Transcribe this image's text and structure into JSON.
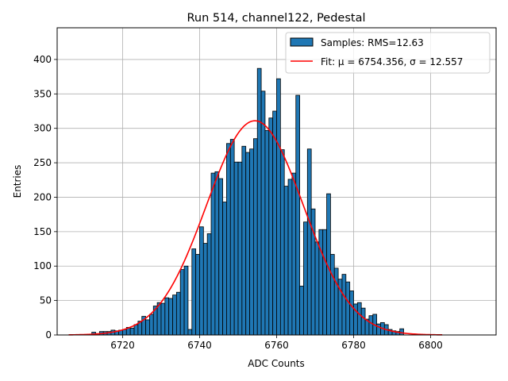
{
  "chart_data": {
    "type": "bar",
    "title": "Run 514, channel122, Pedestal",
    "xlabel": "ADC Counts",
    "ylabel": "Entries",
    "xlim": [
      6703,
      6817
    ],
    "ylim": [
      0,
      446
    ],
    "xticks": [
      6720,
      6740,
      6760,
      6780,
      6800
    ],
    "yticks": [
      0,
      50,
      100,
      150,
      200,
      250,
      300,
      350,
      400
    ],
    "grid": true,
    "legend_position": "top-right",
    "bin_width": 1,
    "bins": [
      [
        6712,
        4
      ],
      [
        6713,
        2
      ],
      [
        6714,
        5
      ],
      [
        6715,
        5
      ],
      [
        6716,
        5
      ],
      [
        6717,
        7
      ],
      [
        6718,
        6
      ],
      [
        6719,
        7
      ],
      [
        6720,
        8
      ],
      [
        6721,
        11
      ],
      [
        6722,
        10
      ],
      [
        6723,
        15
      ],
      [
        6724,
        20
      ],
      [
        6725,
        27
      ],
      [
        6726,
        22
      ],
      [
        6727,
        30
      ],
      [
        6728,
        42
      ],
      [
        6729,
        47
      ],
      [
        6730,
        46
      ],
      [
        6731,
        54
      ],
      [
        6732,
        53
      ],
      [
        6733,
        58
      ],
      [
        6734,
        62
      ],
      [
        6735,
        95
      ],
      [
        6736,
        100
      ],
      [
        6737,
        8
      ],
      [
        6738,
        125
      ],
      [
        6739,
        117
      ],
      [
        6740,
        157
      ],
      [
        6741,
        133
      ],
      [
        6742,
        147
      ],
      [
        6743,
        235
      ],
      [
        6744,
        237
      ],
      [
        6745,
        227
      ],
      [
        6746,
        193
      ],
      [
        6747,
        278
      ],
      [
        6748,
        284
      ],
      [
        6749,
        251
      ],
      [
        6750,
        251
      ],
      [
        6751,
        274
      ],
      [
        6752,
        265
      ],
      [
        6753,
        270
      ],
      [
        6754,
        285
      ],
      [
        6755,
        387
      ],
      [
        6756,
        354
      ],
      [
        6757,
        297
      ],
      [
        6758,
        315
      ],
      [
        6759,
        325
      ],
      [
        6760,
        372
      ],
      [
        6761,
        269
      ],
      [
        6762,
        216
      ],
      [
        6763,
        226
      ],
      [
        6764,
        235
      ],
      [
        6765,
        348
      ],
      [
        6766,
        71
      ],
      [
        6767,
        164
      ],
      [
        6768,
        270
      ],
      [
        6769,
        183
      ],
      [
        6770,
        135
      ],
      [
        6771,
        153
      ],
      [
        6772,
        153
      ],
      [
        6773,
        205
      ],
      [
        6774,
        117
      ],
      [
        6775,
        97
      ],
      [
        6776,
        81
      ],
      [
        6777,
        88
      ],
      [
        6778,
        77
      ],
      [
        6779,
        64
      ],
      [
        6780,
        45
      ],
      [
        6781,
        47
      ],
      [
        6782,
        39
      ],
      [
        6783,
        23
      ],
      [
        6784,
        28
      ],
      [
        6785,
        30
      ],
      [
        6786,
        16
      ],
      [
        6787,
        18
      ],
      [
        6788,
        15
      ],
      [
        6789,
        8
      ],
      [
        6790,
        6
      ],
      [
        6791,
        5
      ],
      [
        6792,
        9
      ]
    ],
    "series": [
      {
        "name": "Samples",
        "kind": "histogram",
        "color": "#1f77b4",
        "edge_color": "#000000"
      },
      {
        "name": "Fit",
        "kind": "gaussian",
        "color": "#ff0000",
        "mu": 6754.356,
        "sigma": 12.557,
        "amplitude": 311,
        "x_range": [
          6706,
          6803
        ]
      }
    ],
    "legend": [
      {
        "label": "Samples: RMS=12.63",
        "color": "#1f77b4",
        "marker": "patch"
      },
      {
        "label": "Fit: μ = 6754.356, σ = 12.557",
        "color": "#ff0000",
        "marker": "line"
      }
    ]
  }
}
